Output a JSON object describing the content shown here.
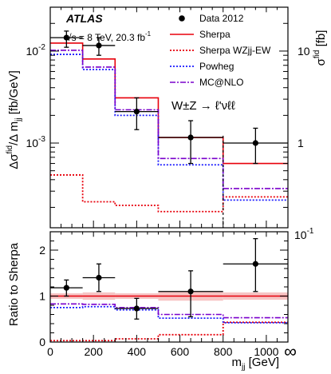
{
  "chart_data": {
    "type": "histogram",
    "top_panel": {
      "experiment": "ATLAS",
      "energy_label": "√s = 8 TeV, 20.3 fb",
      "energy_label_sup": "-1",
      "process_label": "W±Z → ℓ'νℓℓ",
      "y_label_left": "Δσ/Δ m [fb/GeV]",
      "y_label_left_parts": {
        "main": "Δσ",
        "sup": "fid",
        "mid": "/Δ m",
        "sub": "jj",
        "unit": " [fb/GeV]"
      },
      "y_label_right_parts": {
        "main": "σ",
        "sup": "fid",
        "unit": " [fb]"
      },
      "y_scale": "log",
      "ylim": [
        0.00012,
        0.03
      ],
      "y_ticks": [
        {
          "value": 0.01,
          "base": "10",
          "exp": "-2"
        },
        {
          "value": 0.001,
          "base": "10",
          "exp": "-3"
        }
      ],
      "right_axis_ticks": [
        {
          "value": 10,
          "label": "10"
        },
        {
          "value": 1,
          "label": "1"
        },
        {
          "value": 0.1,
          "base": "10",
          "exp": "-1"
        }
      ],
      "bin_edges": [
        0,
        150,
        300,
        500,
        800,
        1100
      ],
      "overflow_bin_start": 800,
      "series": [
        {
          "name": "Data 2012",
          "style": "points",
          "color": "#000000",
          "x": [
            75,
            225,
            400,
            650,
            950
          ],
          "values": [
            0.014,
            0.0115,
            0.0022,
            0.00115,
            0.001
          ],
          "err_low": [
            0.011,
            0.009,
            0.0014,
            0.0006,
            0.0006
          ],
          "err_high": [
            0.0165,
            0.014,
            0.0031,
            0.00175,
            0.00145
          ]
        },
        {
          "name": "Sherpa",
          "style": "solid",
          "color": "#e8000b",
          "values": [
            0.0122,
            0.0082,
            0.0031,
            0.00115,
            0.0006
          ]
        },
        {
          "name": "Sherpa WZjj-EW",
          "style": "dotted",
          "color": "#e8000b",
          "values": [
            0.00045,
            0.00023,
            0.00021,
            0.00018,
            0.00026
          ]
        },
        {
          "name": "Powheg",
          "style": "dotted",
          "color": "#1a1aff",
          "values": [
            0.0092,
            0.0063,
            0.002,
            0.00058,
            0.00024
          ]
        },
        {
          "name": "MC@NLO",
          "style": "dashdot",
          "color": "#7a00cc",
          "values": [
            0.0102,
            0.0067,
            0.0023,
            0.00068,
            0.00032
          ]
        }
      ]
    },
    "bottom_panel": {
      "y_label": "Ratio to Sherpa",
      "ylim": [
        0,
        2.4
      ],
      "y_ticks": [
        0,
        1,
        2
      ],
      "reference_line": 1,
      "data": {
        "x": [
          75,
          225,
          400,
          650,
          950
        ],
        "values": [
          1.18,
          1.4,
          0.73,
          1.1,
          1.7
        ],
        "err_low": [
          1.0,
          1.1,
          0.5,
          0.55,
          1.1
        ],
        "err_high": [
          1.35,
          1.7,
          0.95,
          1.55,
          2.25
        ]
      },
      "uncertainty_band": [
        0.06,
        0.08,
        0.06,
        0.1,
        0.08
      ],
      "ratios": [
        {
          "name": "Sherpa WZjj-EW",
          "values": [
            0.03,
            0.03,
            0.07,
            0.16,
            0.43
          ]
        },
        {
          "name": "Powheg",
          "values": [
            0.75,
            0.77,
            0.7,
            0.52,
            0.42
          ]
        },
        {
          "name": "MC@NLO",
          "values": [
            0.83,
            0.82,
            0.75,
            0.6,
            0.53
          ]
        }
      ]
    },
    "x_axis": {
      "label_main": "m",
      "label_sub": "jj",
      "label_unit": " [GeV]",
      "xlim": [
        0,
        1100
      ],
      "ticks": [
        0,
        200,
        400,
        600,
        800,
        1000
      ],
      "overflow_symbol": "∞"
    },
    "legend_position": "top-right"
  }
}
